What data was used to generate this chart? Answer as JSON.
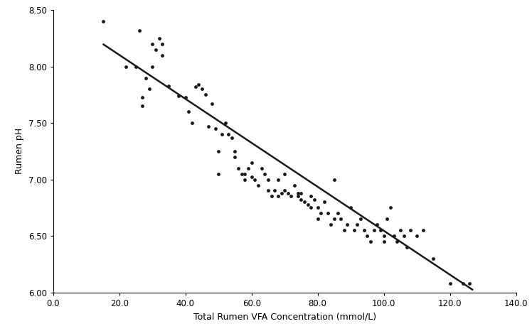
{
  "x_data": [
    15,
    22,
    25,
    26,
    27,
    27,
    28,
    29,
    30,
    30,
    31,
    32,
    33,
    33,
    35,
    38,
    40,
    41,
    42,
    43,
    44,
    45,
    46,
    47,
    48,
    49,
    50,
    50,
    51,
    52,
    53,
    54,
    55,
    55,
    56,
    57,
    58,
    58,
    59,
    60,
    60,
    61,
    62,
    63,
    64,
    65,
    65,
    66,
    67,
    68,
    68,
    69,
    70,
    70,
    71,
    72,
    73,
    74,
    74,
    75,
    75,
    76,
    77,
    78,
    78,
    79,
    80,
    80,
    81,
    82,
    83,
    84,
    85,
    85,
    86,
    87,
    88,
    89,
    90,
    91,
    92,
    93,
    94,
    95,
    96,
    97,
    98,
    99,
    100,
    100,
    101,
    102,
    103,
    104,
    105,
    106,
    107,
    108,
    110,
    112,
    115,
    120,
    124,
    126
  ],
  "y_data": [
    8.4,
    8.0,
    8.0,
    8.32,
    7.73,
    7.65,
    7.9,
    7.8,
    8.0,
    8.2,
    8.15,
    8.25,
    8.2,
    8.1,
    7.83,
    7.74,
    7.73,
    7.6,
    7.5,
    7.82,
    7.84,
    7.8,
    7.75,
    7.47,
    7.67,
    7.45,
    7.25,
    7.05,
    7.4,
    7.5,
    7.4,
    7.37,
    7.25,
    7.2,
    7.1,
    7.05,
    7.0,
    7.05,
    7.1,
    7.02,
    7.15,
    7.0,
    6.95,
    7.1,
    7.05,
    6.9,
    7.0,
    6.85,
    6.9,
    7.0,
    6.85,
    6.88,
    6.9,
    7.05,
    6.88,
    6.85,
    6.95,
    6.88,
    6.85,
    6.88,
    6.82,
    6.8,
    6.78,
    6.85,
    6.75,
    6.82,
    6.75,
    6.65,
    6.7,
    6.8,
    6.7,
    6.6,
    6.65,
    7.0,
    6.7,
    6.65,
    6.55,
    6.6,
    6.75,
    6.55,
    6.6,
    6.65,
    6.55,
    6.5,
    6.45,
    6.55,
    6.6,
    6.55,
    6.5,
    6.45,
    6.65,
    6.75,
    6.5,
    6.45,
    6.55,
    6.5,
    6.4,
    6.55,
    6.5,
    6.55,
    6.3,
    6.08,
    6.08,
    6.08
  ],
  "line_x": [
    15,
    127
  ],
  "line_y": [
    8.2,
    6.02
  ],
  "xlabel": "Total Rumen VFA Concentration (mmol/L)",
  "ylabel": "Rumen pH",
  "xlim": [
    0.0,
    140.0
  ],
  "ylim": [
    6.0,
    8.5
  ],
  "xticks": [
    0.0,
    20.0,
    40.0,
    60.0,
    80.0,
    100.0,
    120.0,
    140.0
  ],
  "yticks": [
    6.0,
    6.5,
    7.0,
    7.5,
    8.0,
    8.5
  ],
  "marker_color": "#1a1a1a",
  "marker_size": 3.5,
  "line_color": "#1a1a1a",
  "line_width": 1.8,
  "bg_color": "white",
  "font_size_label": 9,
  "font_size_tick": 8.5
}
